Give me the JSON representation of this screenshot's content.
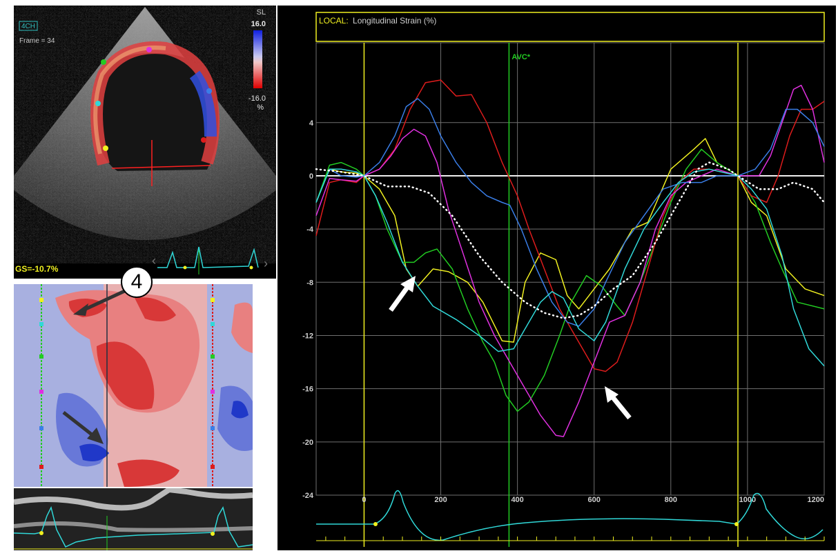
{
  "echo": {
    "view_label": "4CH",
    "frame_label": "Frame = 34",
    "scale_label": "SL",
    "scale_max": "16.0",
    "scale_min": "-16.0",
    "scale_unit": "%",
    "global_strain": "GS=-10.7%"
  },
  "annotation": {
    "number": "4"
  },
  "colors": {
    "yellow": "#f0f020",
    "green": "#22cc22",
    "red": "#dd1c1c",
    "magenta": "#e030e0",
    "blue": "#3a7ee8",
    "cyan": "#30d8d8",
    "white": "#ffffff"
  },
  "chart_data": {
    "type": "line",
    "title_prefix": "LOCAL:",
    "title": "Longitudinal Strain (%)",
    "marker_label": "AVC*",
    "xlim": [
      -125,
      1200
    ],
    "ylim": [
      -24,
      10
    ],
    "x_ticks": [
      0,
      200,
      400,
      600,
      800,
      1000,
      1200
    ],
    "y_ticks": [
      4,
      0,
      -4,
      -8,
      -12,
      -16,
      -20,
      -24
    ],
    "vlines": {
      "yellow_start": 0,
      "avc": 378,
      "yellow_end": 975
    },
    "series": [
      {
        "color": "#f0f020",
        "points": [
          [
            -125,
            -2
          ],
          [
            -90,
            0.5
          ],
          [
            -60,
            0.3
          ],
          [
            -20,
            0.2
          ],
          [
            0,
            0
          ],
          [
            40,
            -1
          ],
          [
            80,
            -3
          ],
          [
            110,
            -7
          ],
          [
            140,
            -8.3
          ],
          [
            180,
            -7
          ],
          [
            220,
            -7.2
          ],
          [
            270,
            -8
          ],
          [
            310,
            -9.5
          ],
          [
            360,
            -12.4
          ],
          [
            390,
            -12.5
          ],
          [
            420,
            -8
          ],
          [
            460,
            -5.8
          ],
          [
            500,
            -6.3
          ],
          [
            530,
            -9
          ],
          [
            560,
            -10
          ],
          [
            600,
            -8.5
          ],
          [
            640,
            -7
          ],
          [
            700,
            -4
          ],
          [
            740,
            -3.5
          ],
          [
            800,
            0.5
          ],
          [
            860,
            2
          ],
          [
            890,
            2.8
          ],
          [
            920,
            1
          ],
          [
            975,
            0
          ],
          [
            1010,
            -2
          ],
          [
            1050,
            -3
          ],
          [
            1100,
            -7
          ],
          [
            1150,
            -8.5
          ],
          [
            1200,
            -9
          ]
        ]
      },
      {
        "color": "#22cc22",
        "points": [
          [
            -125,
            -2
          ],
          [
            -90,
            0.8
          ],
          [
            -60,
            1
          ],
          [
            -20,
            0.5
          ],
          [
            0,
            0
          ],
          [
            30,
            -1.5
          ],
          [
            60,
            -4
          ],
          [
            100,
            -6.5
          ],
          [
            130,
            -6.5
          ],
          [
            160,
            -5.8
          ],
          [
            190,
            -5.5
          ],
          [
            230,
            -7
          ],
          [
            270,
            -10
          ],
          [
            310,
            -12.5
          ],
          [
            340,
            -14
          ],
          [
            370,
            -16.5
          ],
          [
            400,
            -17.7
          ],
          [
            430,
            -17
          ],
          [
            470,
            -15
          ],
          [
            510,
            -12
          ],
          [
            540,
            -9.5
          ],
          [
            580,
            -7.5
          ],
          [
            620,
            -8.3
          ],
          [
            660,
            -9.8
          ],
          [
            680,
            -10.5
          ],
          [
            720,
            -8
          ],
          [
            760,
            -5
          ],
          [
            800,
            -2
          ],
          [
            840,
            0.5
          ],
          [
            880,
            2
          ],
          [
            920,
            1
          ],
          [
            975,
            0
          ],
          [
            1020,
            -2
          ],
          [
            1060,
            -5
          ],
          [
            1090,
            -7
          ],
          [
            1130,
            -9.5
          ],
          [
            1200,
            -10
          ]
        ]
      },
      {
        "color": "#dd1c1c",
        "points": [
          [
            -125,
            -4.5
          ],
          [
            -90,
            -0.5
          ],
          [
            -60,
            -0.3
          ],
          [
            -20,
            -0.5
          ],
          [
            0,
            0
          ],
          [
            40,
            0.5
          ],
          [
            80,
            2
          ],
          [
            120,
            5
          ],
          [
            160,
            7
          ],
          [
            200,
            7.2
          ],
          [
            240,
            6
          ],
          [
            280,
            6.1
          ],
          [
            320,
            4
          ],
          [
            360,
            1
          ],
          [
            400,
            -1.5
          ],
          [
            430,
            -4
          ],
          [
            470,
            -7
          ],
          [
            510,
            -10
          ],
          [
            550,
            -12
          ],
          [
            580,
            -13.5
          ],
          [
            600,
            -14.5
          ],
          [
            630,
            -14.7
          ],
          [
            660,
            -14
          ],
          [
            700,
            -11
          ],
          [
            740,
            -7
          ],
          [
            780,
            -3
          ],
          [
            820,
            -0.5
          ],
          [
            860,
            0.5
          ],
          [
            900,
            0.5
          ],
          [
            975,
            0
          ],
          [
            1010,
            -1.5
          ],
          [
            1050,
            -2
          ],
          [
            1080,
            0
          ],
          [
            1110,
            3
          ],
          [
            1140,
            5
          ],
          [
            1170,
            5
          ],
          [
            1200,
            5.6
          ]
        ]
      },
      {
        "color": "#e030e0",
        "points": [
          [
            -125,
            -3
          ],
          [
            -90,
            -0.2
          ],
          [
            -60,
            -0.3
          ],
          [
            -20,
            -0.4
          ],
          [
            0,
            0
          ],
          [
            40,
            0.5
          ],
          [
            70,
            1.5
          ],
          [
            100,
            2.8
          ],
          [
            130,
            3.5
          ],
          [
            160,
            3
          ],
          [
            190,
            1
          ],
          [
            220,
            -2.5
          ],
          [
            260,
            -6
          ],
          [
            300,
            -9.5
          ],
          [
            340,
            -12
          ],
          [
            380,
            -14
          ],
          [
            400,
            -15
          ],
          [
            430,
            -16.5
          ],
          [
            460,
            -18
          ],
          [
            500,
            -19.5
          ],
          [
            520,
            -19.6
          ],
          [
            560,
            -17
          ],
          [
            600,
            -14
          ],
          [
            640,
            -11
          ],
          [
            680,
            -10.5
          ],
          [
            720,
            -8
          ],
          [
            760,
            -4
          ],
          [
            800,
            -1.5
          ],
          [
            840,
            -0.5
          ],
          [
            880,
            0
          ],
          [
            920,
            0.5
          ],
          [
            975,
            0
          ],
          [
            1030,
            0
          ],
          [
            1060,
            1.5
          ],
          [
            1090,
            4
          ],
          [
            1120,
            6.5
          ],
          [
            1140,
            6.8
          ],
          [
            1170,
            5
          ],
          [
            1200,
            1
          ]
        ]
      },
      {
        "color": "#3a7ee8",
        "points": [
          [
            -125,
            -2
          ],
          [
            -90,
            0.5
          ],
          [
            -60,
            0
          ],
          [
            -20,
            -0.1
          ],
          [
            0,
            0
          ],
          [
            40,
            1
          ],
          [
            80,
            3
          ],
          [
            110,
            5.2
          ],
          [
            140,
            5.8
          ],
          [
            170,
            5
          ],
          [
            200,
            3
          ],
          [
            240,
            1
          ],
          [
            280,
            -0.5
          ],
          [
            320,
            -1.5
          ],
          [
            360,
            -2
          ],
          [
            380,
            -2.2
          ],
          [
            410,
            -4
          ],
          [
            450,
            -7
          ],
          [
            490,
            -9.5
          ],
          [
            530,
            -11
          ],
          [
            560,
            -11.3
          ],
          [
            600,
            -10
          ],
          [
            630,
            -8
          ],
          [
            680,
            -5
          ],
          [
            730,
            -3
          ],
          [
            780,
            -1
          ],
          [
            830,
            -0.5
          ],
          [
            880,
            -0.5
          ],
          [
            920,
            0
          ],
          [
            975,
            0
          ],
          [
            1020,
            0.5
          ],
          [
            1060,
            2
          ],
          [
            1100,
            5
          ],
          [
            1130,
            5
          ],
          [
            1170,
            4
          ],
          [
            1200,
            2.2
          ]
        ]
      },
      {
        "color": "#30d8d8",
        "points": [
          [
            -125,
            -2
          ],
          [
            -90,
            0.5
          ],
          [
            -60,
            0.5
          ],
          [
            -20,
            0.3
          ],
          [
            0,
            0
          ],
          [
            30,
            -1.5
          ],
          [
            60,
            -3.5
          ],
          [
            100,
            -6.5
          ],
          [
            140,
            -8.3
          ],
          [
            180,
            -9.8
          ],
          [
            240,
            -10.8
          ],
          [
            300,
            -12
          ],
          [
            350,
            -13.2
          ],
          [
            390,
            -13
          ],
          [
            420,
            -11.5
          ],
          [
            460,
            -9.5
          ],
          [
            490,
            -8.7
          ],
          [
            520,
            -9.2
          ],
          [
            560,
            -11.5
          ],
          [
            600,
            -12.4
          ],
          [
            630,
            -11
          ],
          [
            680,
            -7
          ],
          [
            730,
            -4
          ],
          [
            780,
            -2
          ],
          [
            820,
            -0.5
          ],
          [
            860,
            0.3
          ],
          [
            900,
            0.5
          ],
          [
            975,
            0
          ],
          [
            1010,
            -1
          ],
          [
            1050,
            -2.5
          ],
          [
            1090,
            -6
          ],
          [
            1120,
            -10
          ],
          [
            1160,
            -13
          ],
          [
            1200,
            -14.3
          ]
        ]
      },
      {
        "color": "#ffffff",
        "dotted": true,
        "points": [
          [
            -125,
            0.5
          ],
          [
            -60,
            0.3
          ],
          [
            0,
            0
          ],
          [
            60,
            -0.8
          ],
          [
            120,
            -0.8
          ],
          [
            170,
            -1.3
          ],
          [
            230,
            -3
          ],
          [
            300,
            -6
          ],
          [
            360,
            -8
          ],
          [
            420,
            -9.5
          ],
          [
            470,
            -10.3
          ],
          [
            520,
            -10.7
          ],
          [
            560,
            -10.5
          ],
          [
            600,
            -9.8
          ],
          [
            650,
            -8.5
          ],
          [
            700,
            -7.5
          ],
          [
            760,
            -5
          ],
          [
            820,
            -2
          ],
          [
            870,
            0.5
          ],
          [
            900,
            1
          ],
          [
            950,
            0.5
          ],
          [
            975,
            0
          ],
          [
            1030,
            -1
          ],
          [
            1080,
            -1
          ],
          [
            1120,
            -0.5
          ],
          [
            1170,
            -1
          ],
          [
            1200,
            -2
          ]
        ]
      }
    ]
  }
}
